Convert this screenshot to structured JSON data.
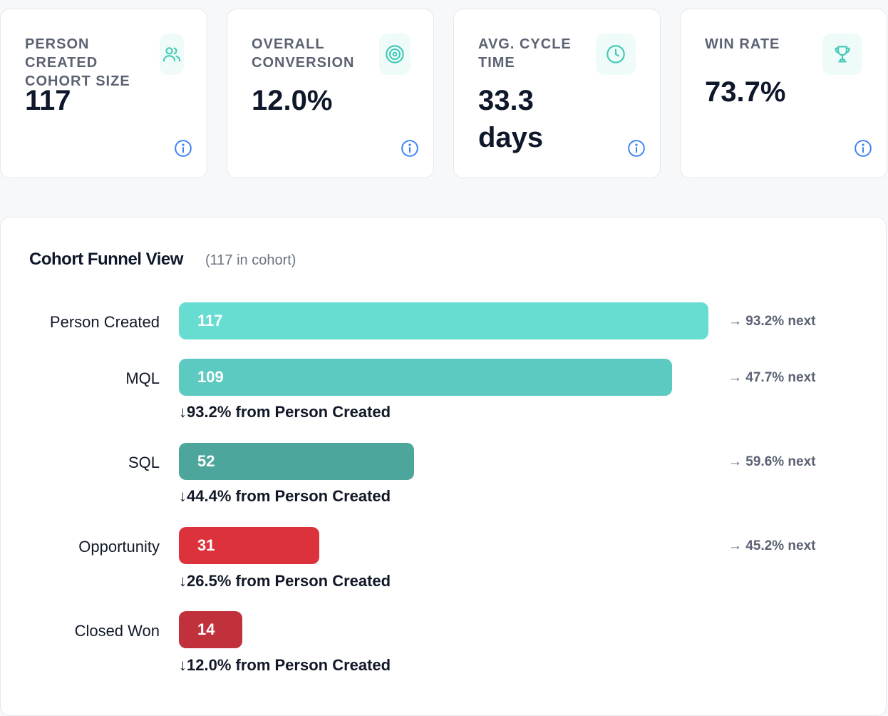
{
  "kpis": [
    {
      "label": "PERSON CREATED COHORT SIZE",
      "value": "117",
      "icon": "users-icon"
    },
    {
      "label": "OVERALL CONVERSION",
      "value": "12.0%",
      "icon": "target-icon"
    },
    {
      "label": "AVG. CYCLE TIME",
      "value": "33.3 days",
      "icon": "clock-icon"
    },
    {
      "label": "WIN RATE",
      "value": "73.7%",
      "icon": "trophy-icon"
    }
  ],
  "funnel": {
    "title": "Cohort Funnel View",
    "subtitle": "(117 in cohort)",
    "stages": [
      {
        "label": "Person Created",
        "count": "117",
        "share": 1.0,
        "color": "#67ddd2",
        "next": "→ 93.2% next",
        "from": ""
      },
      {
        "label": "MQL",
        "count": "109",
        "share": 0.932,
        "color": "#5ccac0",
        "next": "→ 47.7% next",
        "from": "↓93.2% from Person Created"
      },
      {
        "label": "SQL",
        "count": "52",
        "share": 0.444,
        "color": "#4da69c",
        "next": "→ 59.6% next",
        "from": "↓44.4% from Person Created"
      },
      {
        "label": "Opportunity",
        "count": "31",
        "share": 0.265,
        "color": "#dc323c",
        "next": "→ 45.2% next",
        "from": "↓26.5% from Person Created"
      },
      {
        "label": "Closed Won",
        "count": "14",
        "share": 0.12,
        "color": "#c0313c",
        "next": "",
        "from": "↓12.0% from Person Created"
      }
    ]
  },
  "colors": {
    "accent": "#3fc9b7",
    "info": "#3b82f6"
  }
}
